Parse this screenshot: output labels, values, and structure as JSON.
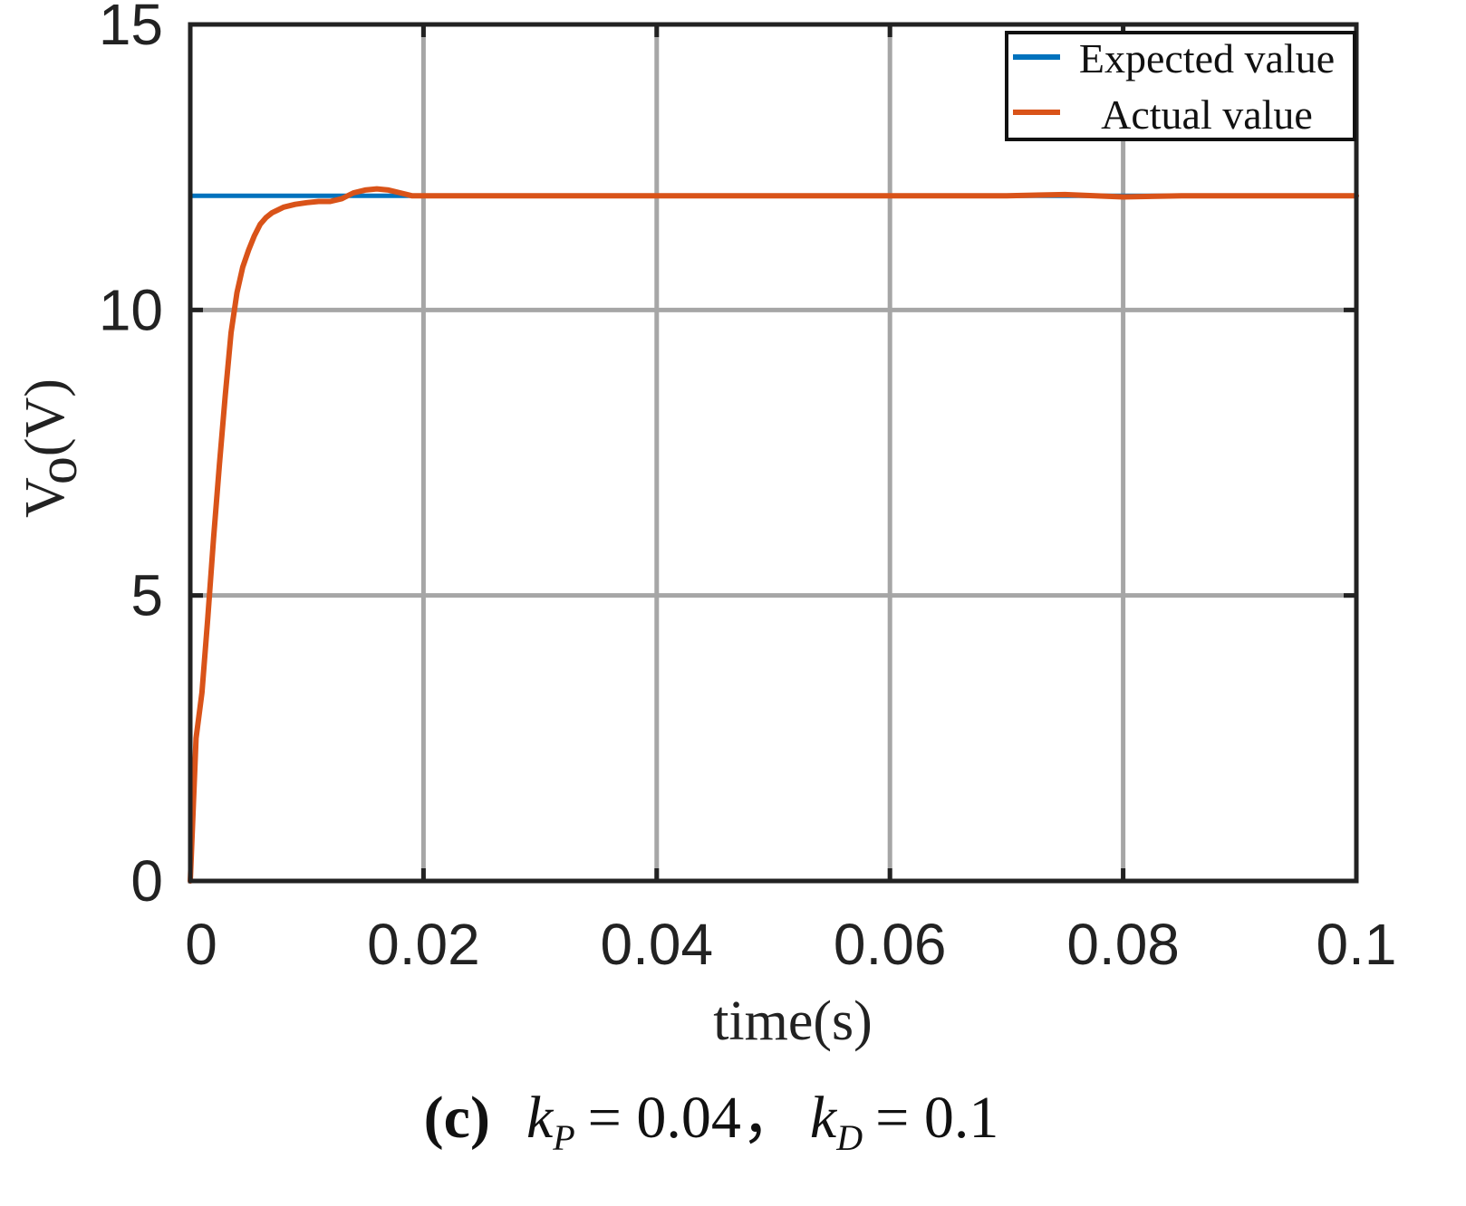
{
  "chart_data": {
    "type": "line",
    "title": "",
    "xlabel": "time(s)",
    "ylabel": {
      "main": "V",
      "sub": "o",
      "unit": "(V)"
    },
    "xlim": [
      0,
      0.1
    ],
    "ylim": [
      0,
      15
    ],
    "x_ticks": [
      0,
      0.02,
      0.04,
      0.06,
      0.08,
      0.1
    ],
    "x_tick_labels": [
      "0",
      "0.02",
      "0.04",
      "0.06",
      "0.08",
      "0.1"
    ],
    "y_ticks": [
      0,
      5,
      10,
      15
    ],
    "y_tick_labels": [
      "0",
      "5",
      "10",
      "15"
    ],
    "grid": true,
    "legend_position": "top-right",
    "series": [
      {
        "name": "Expected value",
        "color": "#0072BD",
        "x": [
          0,
          0.1
        ],
        "y": [
          12,
          12
        ]
      },
      {
        "name": "Actual value",
        "color": "#D95319",
        "x": [
          0,
          0.0005,
          0.001,
          0.0015,
          0.002,
          0.0025,
          0.003,
          0.0035,
          0.004,
          0.0045,
          0.005,
          0.0055,
          0.006,
          0.0065,
          0.007,
          0.0075,
          0.008,
          0.009,
          0.01,
          0.011,
          0.012,
          0.013,
          0.014,
          0.015,
          0.016,
          0.017,
          0.018,
          0.019,
          0.02,
          0.022,
          0.025,
          0.03,
          0.035,
          0.04,
          0.05,
          0.06,
          0.065,
          0.07,
          0.075,
          0.08,
          0.085,
          0.09,
          0.095,
          0.1
        ],
        "y": [
          0,
          2.5,
          3.3,
          4.6,
          6.0,
          7.3,
          8.5,
          9.6,
          10.3,
          10.75,
          11.05,
          11.3,
          11.5,
          11.62,
          11.7,
          11.75,
          11.8,
          11.85,
          11.88,
          11.9,
          11.9,
          11.95,
          12.05,
          12.1,
          12.12,
          12.1,
          12.05,
          12.0,
          12.0,
          12.0,
          12.0,
          12.0,
          12.0,
          12.0,
          12.0,
          12.0,
          12.0,
          12.0,
          12.02,
          11.98,
          12.0,
          12.0,
          12.0,
          12.0
        ]
      }
    ],
    "caption": {
      "label": "(c)",
      "k1_main": "k",
      "k1_sub": "P",
      "v1": "= 0.04",
      "sep": "，",
      "k2_main": "k",
      "k2_sub": "D",
      "v2": "= 0.1"
    }
  }
}
